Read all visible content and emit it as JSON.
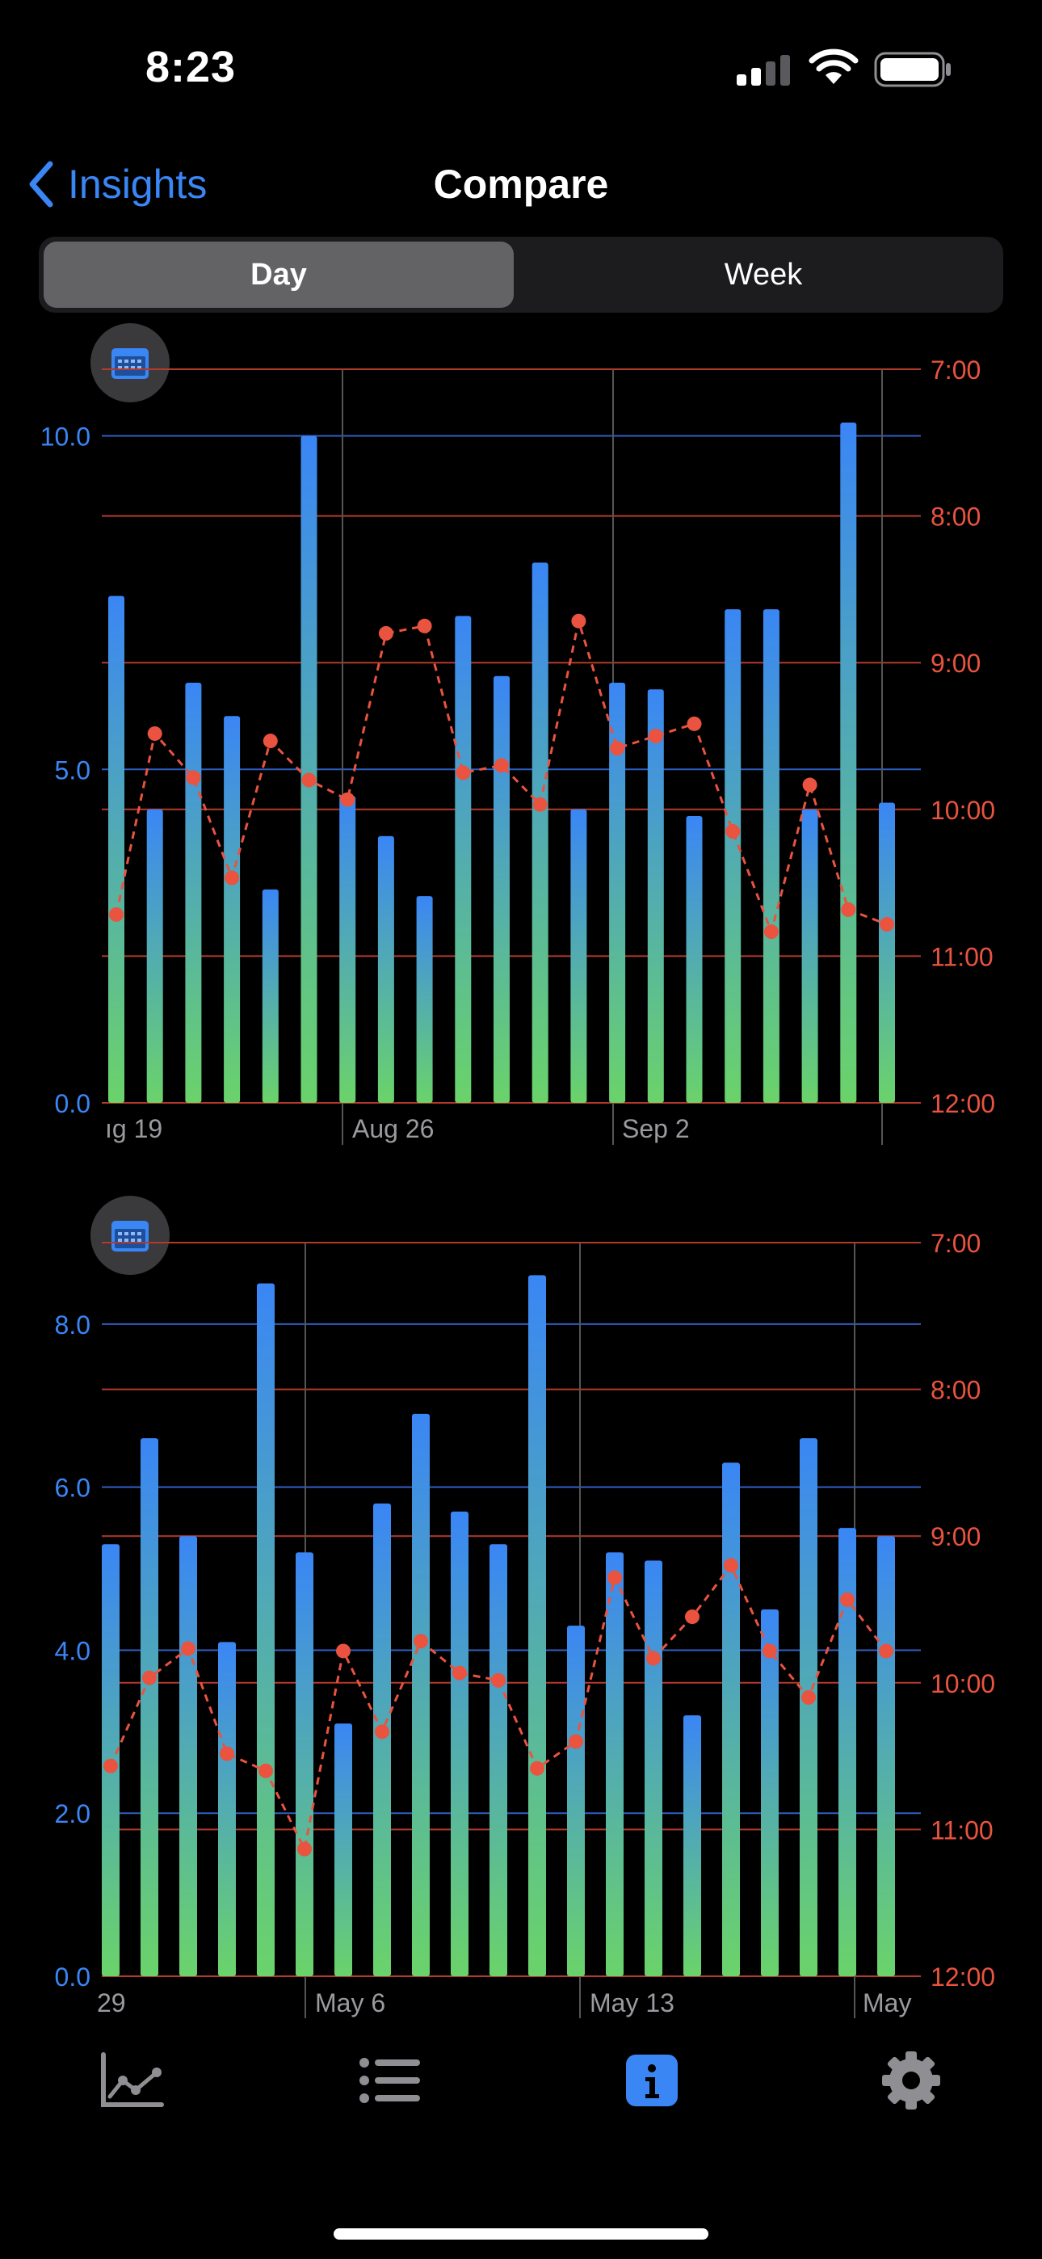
{
  "status": {
    "time": "8:23"
  },
  "nav": {
    "back_label": "Insights",
    "title": "Compare"
  },
  "segment": {
    "options": [
      "Day",
      "Week"
    ],
    "selected": "Day"
  },
  "colors": {
    "accent": "#3a86f5",
    "line": "#e9533f",
    "bar_top": "#3a86f5",
    "bar_bottom": "#6bd36a"
  },
  "chart_data": [
    {
      "type": "bar",
      "x_labels": [
        "ıg 19",
        "Aug 26",
        "Sep 2"
      ],
      "left_axis": {
        "ticks": [
          "10.0",
          "5.0",
          "0.0"
        ],
        "ylim": [
          0,
          11
        ]
      },
      "right_axis": {
        "ticks": [
          "7:00",
          "8:00",
          "9:00",
          "10:00",
          "11:00",
          "12:00"
        ],
        "ylim": [
          "7:00",
          "12:00"
        ]
      },
      "bars": [
        7.6,
        4.4,
        6.3,
        5.8,
        3.2,
        10.0,
        4.6,
        4.0,
        3.1,
        7.3,
        6.4,
        8.1,
        4.4,
        6.3,
        6.2,
        4.3,
        7.4,
        7.4,
        4.4,
        10.2,
        4.5
      ],
      "line": [
        "10:43",
        "9:29",
        "9:47",
        "10:28",
        "9:32",
        "9:48",
        "9:56",
        "8:48",
        "8:45",
        "9:45",
        "9:42",
        "9:58",
        "8:43",
        "9:35",
        "9:30",
        "9:25",
        "10:09",
        "10:50",
        "9:50",
        "10:41",
        "10:47"
      ]
    },
    {
      "type": "bar",
      "x_labels": [
        "29",
        "May 6",
        "May 13",
        "May"
      ],
      "left_axis": {
        "ticks": [
          "8.0",
          "6.0",
          "4.0",
          "2.0",
          "0.0"
        ],
        "ylim": [
          0,
          9
        ]
      },
      "right_axis": {
        "ticks": [
          "7:00",
          "8:00",
          "9:00",
          "10:00",
          "11:00",
          "12:00"
        ],
        "ylim": [
          "7:00",
          "12:00"
        ]
      },
      "bars": [
        5.3,
        6.6,
        5.4,
        4.1,
        8.5,
        5.2,
        3.1,
        5.8,
        6.9,
        5.7,
        5.3,
        8.6,
        4.3,
        5.2,
        5.1,
        3.2,
        6.3,
        4.5,
        6.6,
        5.5,
        5.4
      ],
      "line": [
        "10:34",
        "9:58",
        "9:46",
        "10:29",
        "10:36",
        "11:08",
        "9:47",
        "10:20",
        "9:43",
        "9:56",
        "9:59",
        "10:35",
        "10:24",
        "9:17",
        "9:50",
        "9:33",
        "9:12",
        "9:47",
        "10:06",
        "9:26",
        "9:47"
      ]
    }
  ],
  "tabbar": {
    "items": [
      "trends-icon",
      "list-icon",
      "info-icon",
      "settings-icon"
    ],
    "selected": "info-icon"
  }
}
